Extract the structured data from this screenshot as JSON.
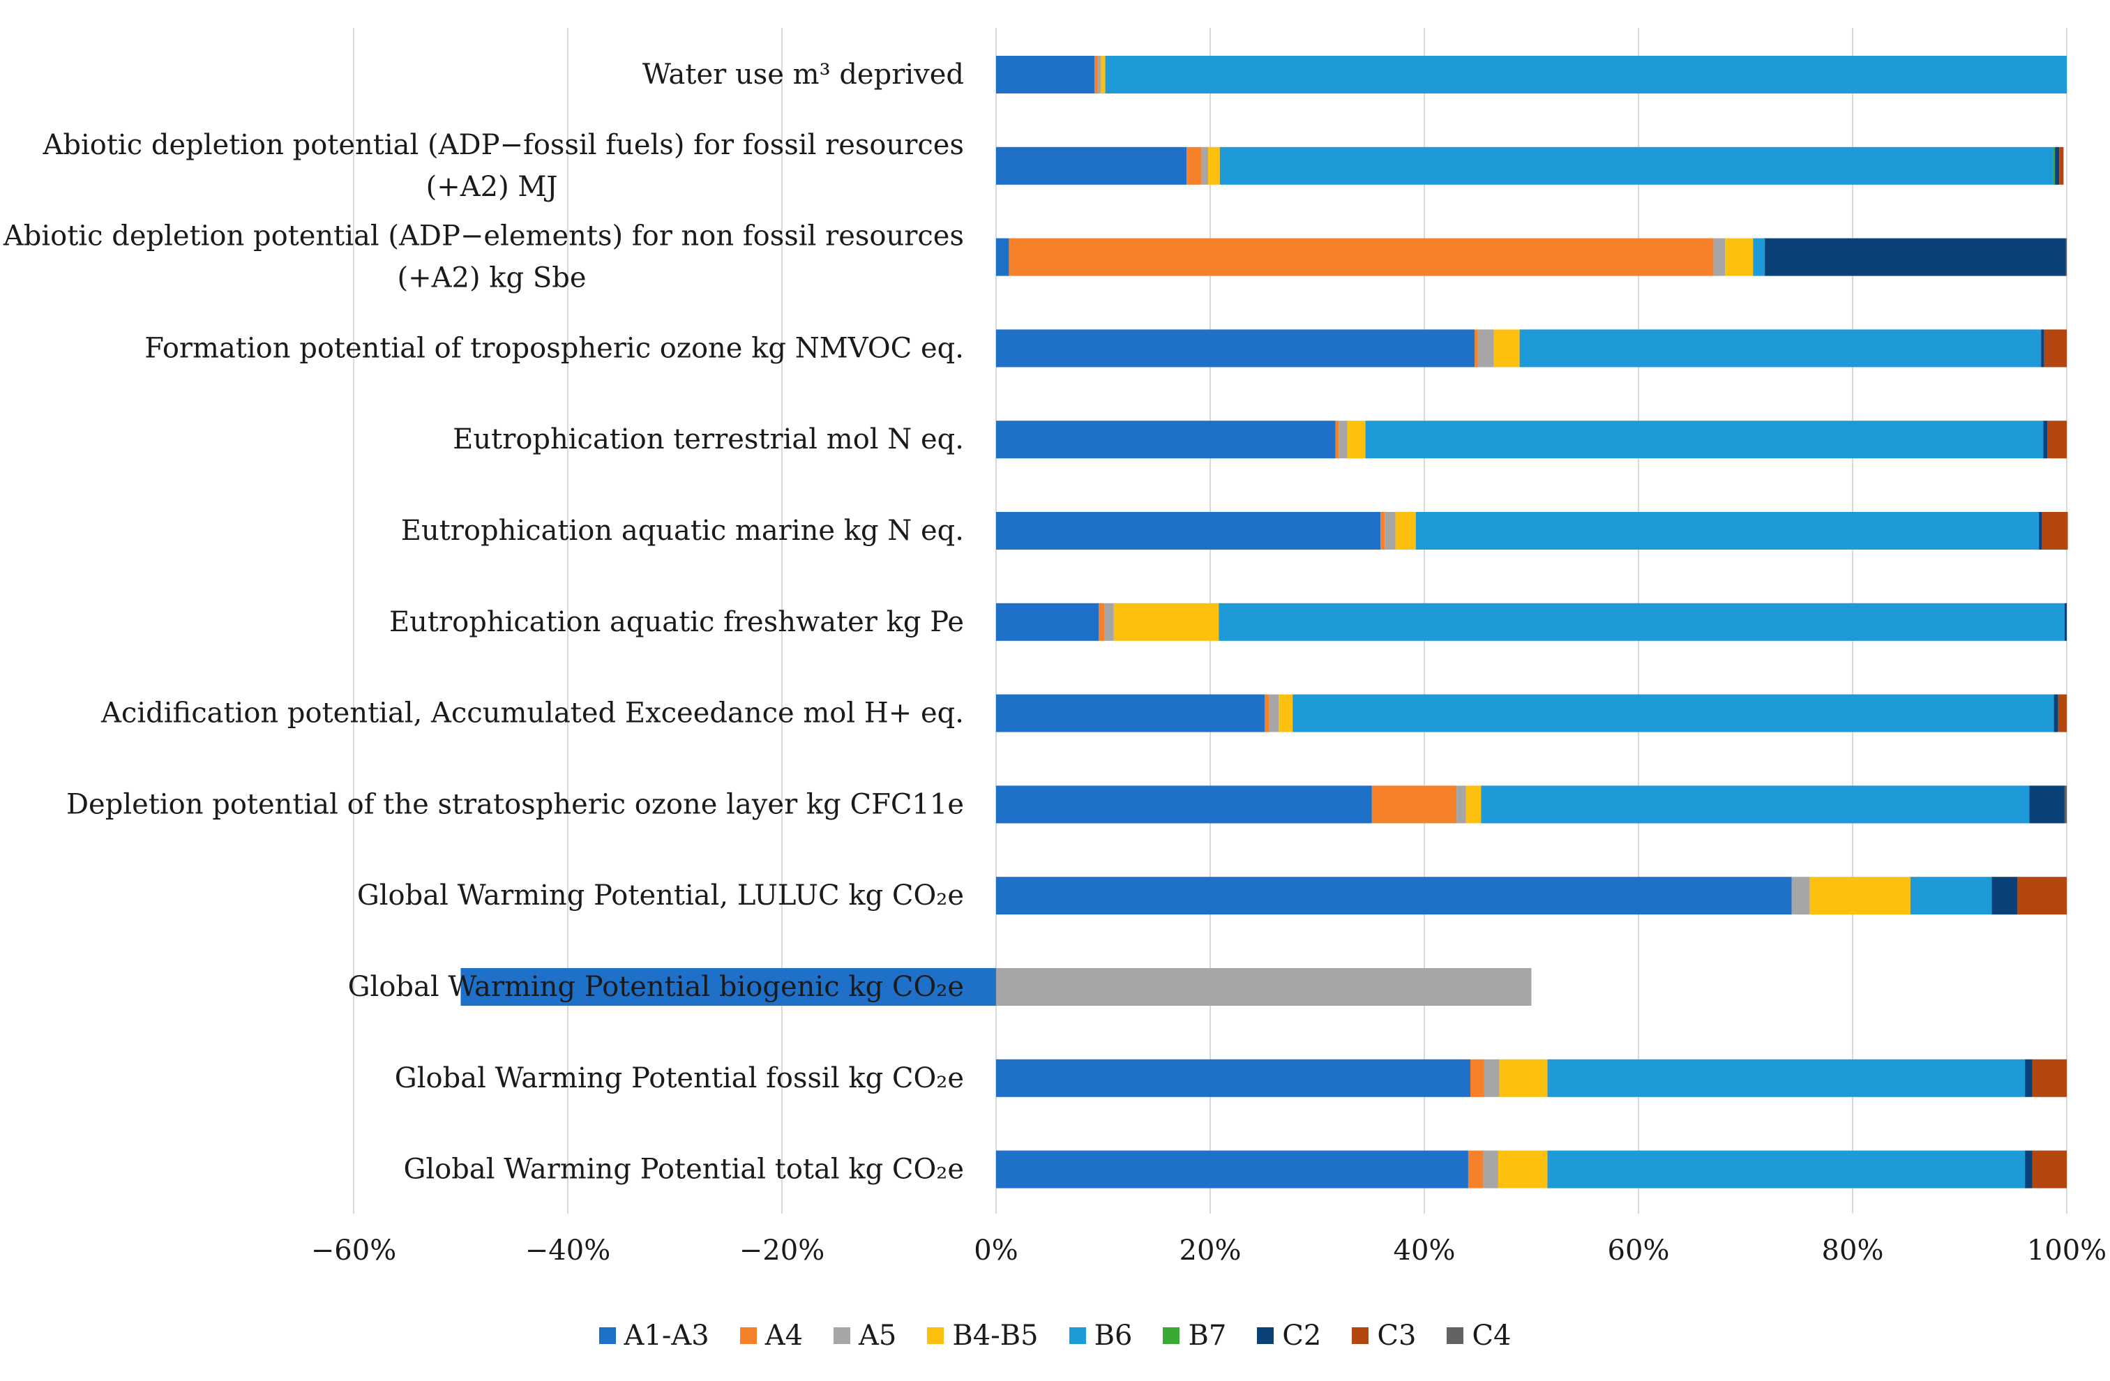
{
  "chart_data": {
    "type": "bar",
    "orientation": "horizontal",
    "stacked": true,
    "title": "",
    "xlabel": "",
    "ylabel": "",
    "xlim": [
      -60,
      100
    ],
    "xticks": [
      -60,
      -40,
      -20,
      0,
      20,
      40,
      60,
      80,
      100
    ],
    "xtick_labels": [
      "−60%",
      "−40%",
      "−20%",
      "0%",
      "20%",
      "40%",
      "60%",
      "80%",
      "100%"
    ],
    "grid": "vertical",
    "legend_position": "bottom",
    "categories": [
      "Water use m³ deprived",
      "Abiotic depletion potential (ADP−fossil fuels) for fossil resources (+A2) MJ",
      "Abiotic depletion potential (ADP−elements) for non fossil resources (+A2) kg Sbe",
      "Formation potential of tropospheric ozone kg NMVOC eq.",
      "Eutrophication terrestrial mol N eq.",
      "Eutrophication aquatic marine kg N eq.",
      "Eutrophication aquatic freshwater kg Pe",
      "Acidification potential, Accumulated Exceedance mol H+ eq.",
      "Depletion potential of the stratospheric ozone layer kg CFC11e",
      "Global Warming Potential, LULUC kg CO₂e",
      "Global Warming Potential biogenic kg CO₂e",
      "Global Warming Potential fossil kg CO₂e",
      "Global Warming Potential total kg CO₂e"
    ],
    "category_lines": [
      [
        "Water use m³ deprived"
      ],
      [
        "Abiotic depletion potential (ADP−fossil fuels) for fossil resources",
        "(+A2) MJ"
      ],
      [
        "Abiotic depletion potential (ADP−elements) for non fossil resources",
        "(+A2) kg Sbe"
      ],
      [
        "Formation potential of tropospheric ozone kg NMVOC eq."
      ],
      [
        "Eutrophication terrestrial mol N eq."
      ],
      [
        "Eutrophication aquatic marine kg N eq."
      ],
      [
        "Eutrophication aquatic freshwater kg Pe"
      ],
      [
        "Acidification potential, Accumulated Exceedance mol H+ eq."
      ],
      [
        "Depletion potential of the stratospheric ozone layer kg CFC11e"
      ],
      [
        "Global Warming Potential, LULUC kg CO₂e"
      ],
      [
        "Global Warming Potential biogenic kg CO₂e"
      ],
      [
        "Global Warming Potential fossil kg CO₂e"
      ],
      [
        "Global Warming Potential total kg CO₂e"
      ]
    ],
    "series": [
      {
        "name": "A1-A3",
        "color": "#1f70c8",
        "values": [
          9.2,
          17.8,
          1.2,
          44.7,
          31.7,
          35.9,
          9.6,
          25.1,
          35.1,
          74.3,
          -50.0,
          44.3,
          44.1
        ]
      },
      {
        "name": "A4",
        "color": "#f5822a",
        "values": [
          0.3,
          1.4,
          65.8,
          0.3,
          0.3,
          0.4,
          0.5,
          0.4,
          7.9,
          0.0,
          0.0,
          1.3,
          1.4
        ]
      },
      {
        "name": "A5",
        "color": "#a6a6a6",
        "values": [
          0.3,
          0.6,
          1.1,
          1.5,
          0.8,
          1.0,
          0.9,
          0.9,
          0.9,
          1.7,
          50.0,
          1.4,
          1.4
        ]
      },
      {
        "name": "B4-B5",
        "color": "#fdc00f",
        "values": [
          0.4,
          1.1,
          2.6,
          2.4,
          1.7,
          1.9,
          9.8,
          1.3,
          1.4,
          9.4,
          0.0,
          4.5,
          4.6
        ]
      },
      {
        "name": "B6",
        "color": "#1e9ad8",
        "values": [
          89.8,
          77.8,
          1.1,
          48.7,
          63.3,
          58.2,
          79.0,
          71.1,
          51.2,
          7.6,
          0.0,
          44.6,
          44.6
        ]
      },
      {
        "name": "B7",
        "color": "#3aaa35",
        "values": [
          0.0,
          0.2,
          0.0,
          0.0,
          0.0,
          0.0,
          0.0,
          0.0,
          0.0,
          0.0,
          0.0,
          0.0,
          0.0
        ]
      },
      {
        "name": "C2",
        "color": "#0a4277",
        "values": [
          0.0,
          0.4,
          28.1,
          0.3,
          0.4,
          0.3,
          0.2,
          0.4,
          3.3,
          2.4,
          0.0,
          0.7,
          0.7
        ]
      },
      {
        "name": "C3",
        "color": "#b3470f",
        "values": [
          0.0,
          0.4,
          0.0,
          2.1,
          1.8,
          2.4,
          0.0,
          0.8,
          0.0,
          4.6,
          0.0,
          3.2,
          3.2
        ]
      },
      {
        "name": "C4",
        "color": "#636363",
        "values": [
          0.0,
          0.0,
          0.1,
          0.0,
          0.0,
          0.0,
          0.0,
          0.0,
          0.2,
          0.0,
          0.0,
          0.0,
          0.0
        ]
      }
    ]
  }
}
